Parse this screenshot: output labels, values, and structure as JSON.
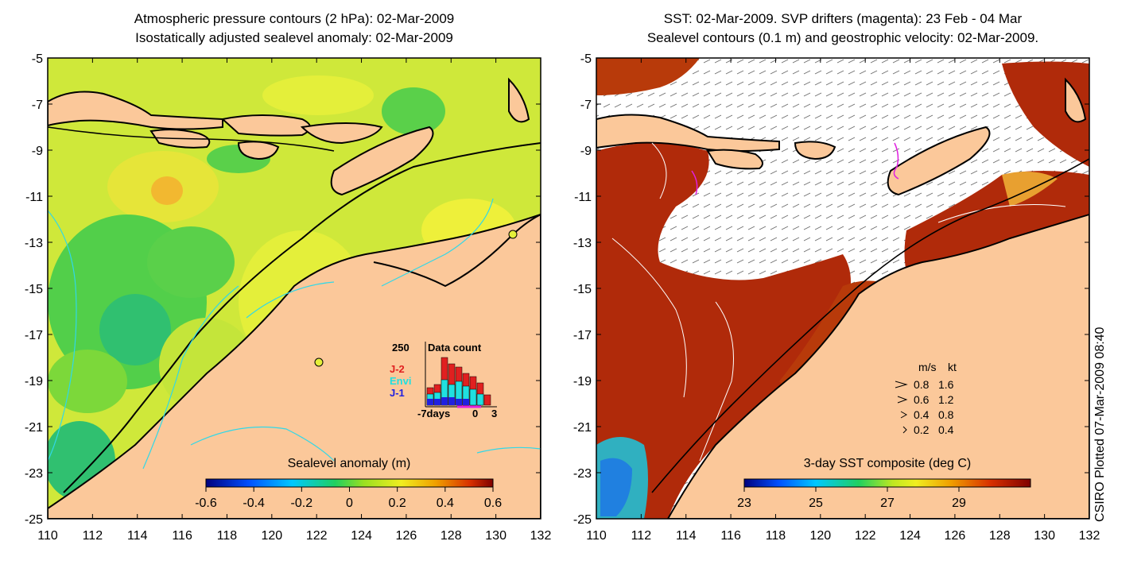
{
  "left": {
    "title_line1": "Atmospheric pressure contours (2 hPa): 02-Mar-2009",
    "title_line2": "Isostatically adjusted sealevel anomaly: 02-Mar-2009",
    "colorbar_label": "Sealevel anomaly (m)",
    "colorbar_ticks": [
      "-0.6",
      "-0.4",
      "-0.2",
      "0",
      "0.2",
      "0.4",
      "0.6"
    ],
    "data_count": {
      "title": "Data count",
      "max_label": "250",
      "x_labels": [
        "-7days",
        "0",
        "3"
      ],
      "legend": [
        {
          "label": "J-2",
          "color": "#e02020"
        },
        {
          "label": "Envi",
          "color": "#20e0e0"
        },
        {
          "label": "J-1",
          "color": "#2020e0"
        }
      ]
    }
  },
  "right": {
    "title_line1": "SST: 02-Mar-2009. SVP drifters (magenta): 23 Feb - 04 Mar",
    "title_line2": "Sealevel contours (0.1 m) and geostrophic velocity: 02-Mar-2009.",
    "colorbar_label": "3-day SST composite (deg C)",
    "colorbar_ticks": [
      "23",
      "25",
      "27",
      "29"
    ],
    "velocity_legend": {
      "header_ms": "m/s",
      "header_kt": "kt",
      "rows": [
        {
          "ms": "0.8",
          "kt": "1.6"
        },
        {
          "ms": "0.6",
          "kt": "1.2"
        },
        {
          "ms": "0.4",
          "kt": "0.8"
        },
        {
          "ms": "0.2",
          "kt": "0.4"
        }
      ]
    }
  },
  "axes": {
    "y_ticks": [
      "-5",
      "-7",
      "-9",
      "-11",
      "-13",
      "-15",
      "-17",
      "-19",
      "-21",
      "-23",
      "-25"
    ],
    "x_ticks": [
      "110",
      "112",
      "114",
      "116",
      "118",
      "120",
      "122",
      "124",
      "126",
      "128",
      "130",
      "132"
    ]
  },
  "credit": "CSIRO Plotted 07-Mar-2009 08:40",
  "colors": {
    "land": "#fbc89a",
    "ocean_green": "#7fd93a",
    "ocean_yellow": "#e4ef3a",
    "sst_red": "#b02a0a",
    "coast": "#000000",
    "contour_cyan": "#30d8e8"
  }
}
